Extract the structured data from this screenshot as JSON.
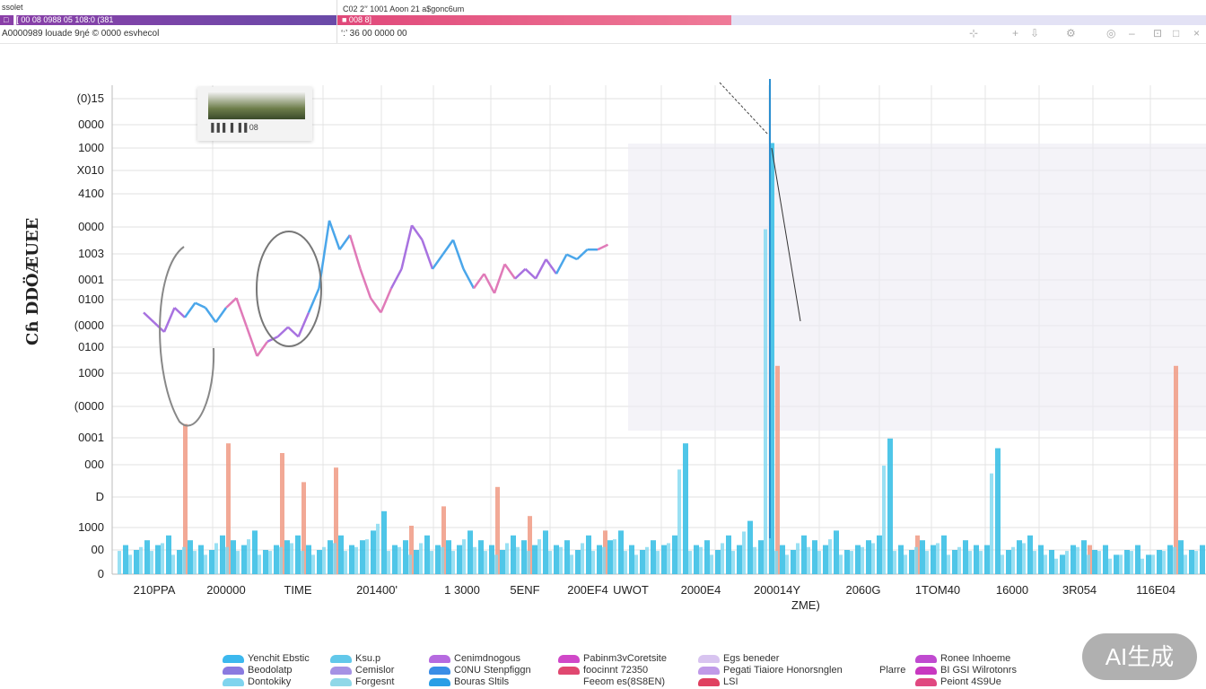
{
  "header": {
    "app_label": "ssolet",
    "purple_tab": "□ ▐[ 00 08 0988 05 108:0 (381",
    "pink_tab_title": "C02 2’′ 1001 Aoon 21 a$gonc6um",
    "pink_tab": "■ 008 8]",
    "row2_left": "A0000989 louade 9ŋé © 0000 esvhecol",
    "row2_right": "‘:’ 36 00 0000 00",
    "window_icons": [
      "pin-icon",
      "plus-icon",
      "download-icon",
      "settings-icon",
      "globe-icon",
      "minimize-icon",
      "restore-icon",
      "maximize-icon",
      "close-icon"
    ]
  },
  "thumbnail": {
    "caption": "▐▐▐ ▐ ▐▐ 08"
  },
  "chart_data": {
    "type": "bar",
    "title": "",
    "ylabel": "Cɦ DDÖÆUEE",
    "xlabel": "ZME)",
    "ylim": [
      0,
      100
    ],
    "grid": true,
    "ytick_labels": [
      "(0)15",
      "0000",
      "1000",
      "X010",
      "4100",
      "0000",
      "1003",
      "0001",
      "0100",
      "(0000",
      "0100",
      "1000",
      "(0000",
      "0001",
      "000",
      "D",
      "1000",
      "00",
      "0"
    ],
    "xtick_labels": [
      "210PPA",
      "200000",
      "TIME",
      "201400'",
      "1 3000",
      "5ENF",
      "200EF4",
      "UWOT",
      "2000E4",
      "200014Y",
      "2060G",
      "1TOM40",
      "16000",
      "3R054",
      "116E04"
    ],
    "series": [
      {
        "name": "Cyan bars",
        "type": "bar",
        "color": "#3cc0e6",
        "values": [
          6,
          5,
          7,
          6,
          8,
          5,
          7,
          6,
          5,
          8,
          7,
          6,
          9,
          5,
          6,
          7,
          8,
          6,
          5,
          7,
          8,
          6,
          7,
          9,
          13,
          6,
          7,
          5,
          8,
          6,
          7,
          6,
          9,
          7,
          6,
          5,
          8,
          7,
          6,
          9,
          6,
          7,
          5,
          8,
          6,
          7,
          9,
          6,
          5,
          7,
          6,
          8,
          27,
          6,
          7,
          5,
          8,
          6,
          11,
          7,
          89,
          6,
          5,
          8,
          7,
          6,
          9,
          5,
          6,
          7,
          8,
          28,
          6,
          5,
          7,
          6,
          8,
          5,
          7,
          6,
          6,
          26,
          5,
          7,
          8,
          6,
          5,
          4,
          6,
          7,
          5,
          6,
          4,
          5,
          6,
          4,
          5,
          6,
          7,
          5,
          6
        ]
      },
      {
        "name": "Salmon bars",
        "type": "bar",
        "color": "#f09a84",
        "points": [
          [
            6,
            31
          ],
          [
            10,
            27
          ],
          [
            15,
            25
          ],
          [
            17,
            19
          ],
          [
            20,
            22
          ],
          [
            27,
            10
          ],
          [
            30,
            14
          ],
          [
            35,
            18
          ],
          [
            38,
            12
          ],
          [
            45,
            9
          ],
          [
            61,
            43
          ],
          [
            74,
            8
          ],
          [
            90,
            6
          ],
          [
            98,
            43
          ]
        ]
      },
      {
        "name": "Price line",
        "type": "line",
        "colors": [
          "#a872e0",
          "#4aa6ea",
          "#e07ab8"
        ],
        "values": [
          54,
          52,
          50,
          55,
          53,
          56,
          55,
          52,
          55,
          57,
          51,
          45,
          48,
          49,
          51,
          49,
          54,
          59,
          73,
          67,
          70,
          63,
          57,
          54,
          59,
          63,
          72,
          69,
          63,
          66,
          69,
          63,
          59,
          62,
          58,
          64,
          61,
          63,
          61,
          65,
          62,
          66,
          65,
          67,
          67,
          68
        ]
      }
    ],
    "legend": [
      {
        "label": "Yenchit Ebstic",
        "color": "#3cb8ee"
      },
      {
        "label": "Beodolatp",
        "color": "#8a7ae0"
      },
      {
        "label": "Dontokiky",
        "color": "#7fd4ee"
      },
      {
        "label": "Ksu.p",
        "color": "#62c8ea"
      },
      {
        "label": "Cemislor",
        "color": "#a592e4"
      },
      {
        "label": "Forgesnt",
        "color": "#8fd8e8"
      },
      {
        "label": "Cenimdnogous",
        "color": "#b66ae0"
      },
      {
        "label": "C0NU Stenpfiggn",
        "color": "#3a8ee6"
      },
      {
        "label": "Bouras Sltils",
        "color": "#2a9ee6"
      },
      {
        "label": "Pabinm3vCoretsite",
        "color": "#d048c8"
      },
      {
        "label": "foocinnt 72350",
        "color": "#e04870"
      },
      {
        "label": "Feeom es(8S8EN)",
        "color": "#ffffff"
      },
      {
        "label": "Egs beneder",
        "color": "#d8c4f0"
      },
      {
        "label": "Pegati  Tiaiore  Honorsnglen",
        "color": "#c09ae8"
      },
      {
        "label": "Plarre",
        "color": "#ffffff"
      },
      {
        "label": "LSI",
        "color": "#e04060"
      },
      {
        "label": "Ronee Inhoeme",
        "color": "#c04ad0"
      },
      {
        "label": "BI GSI Wilrotonrs",
        "color": "#c838c0"
      },
      {
        "label": "Peiont 4S9Ue",
        "color": "#e04880"
      }
    ]
  },
  "badge": {
    "label": "AI生成"
  }
}
